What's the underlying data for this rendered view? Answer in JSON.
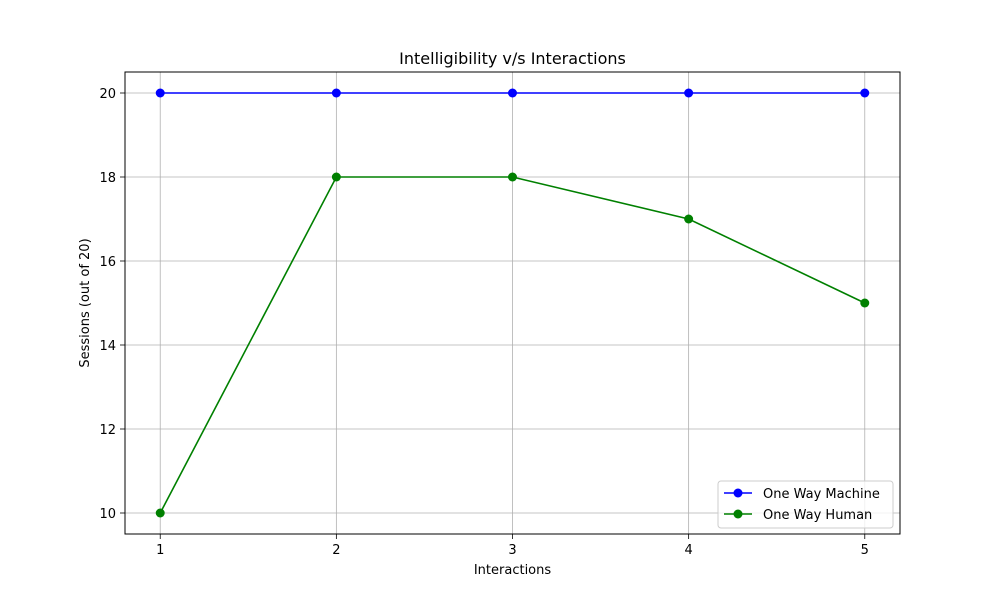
{
  "chart_data": {
    "type": "line",
    "title": "Intelligibility v/s Interactions",
    "xlabel": "Interactions",
    "ylabel": "Sessions (out of 20)",
    "x": [
      1,
      2,
      3,
      4,
      5
    ],
    "xticks": [
      "1",
      "2",
      "3",
      "4",
      "5"
    ],
    "yticks": [
      "10",
      "12",
      "14",
      "16",
      "18",
      "20"
    ],
    "xlim": [
      0.8,
      5.2
    ],
    "ylim": [
      9.5,
      20.5
    ],
    "grid": true,
    "legend_position": "lower-right",
    "series": [
      {
        "name": "One Way Machine",
        "color": "#0000ff",
        "values": [
          20,
          20,
          20,
          20,
          20
        ]
      },
      {
        "name": "One Way Human",
        "color": "#008000",
        "values": [
          10,
          18,
          18,
          17,
          15
        ]
      }
    ]
  }
}
